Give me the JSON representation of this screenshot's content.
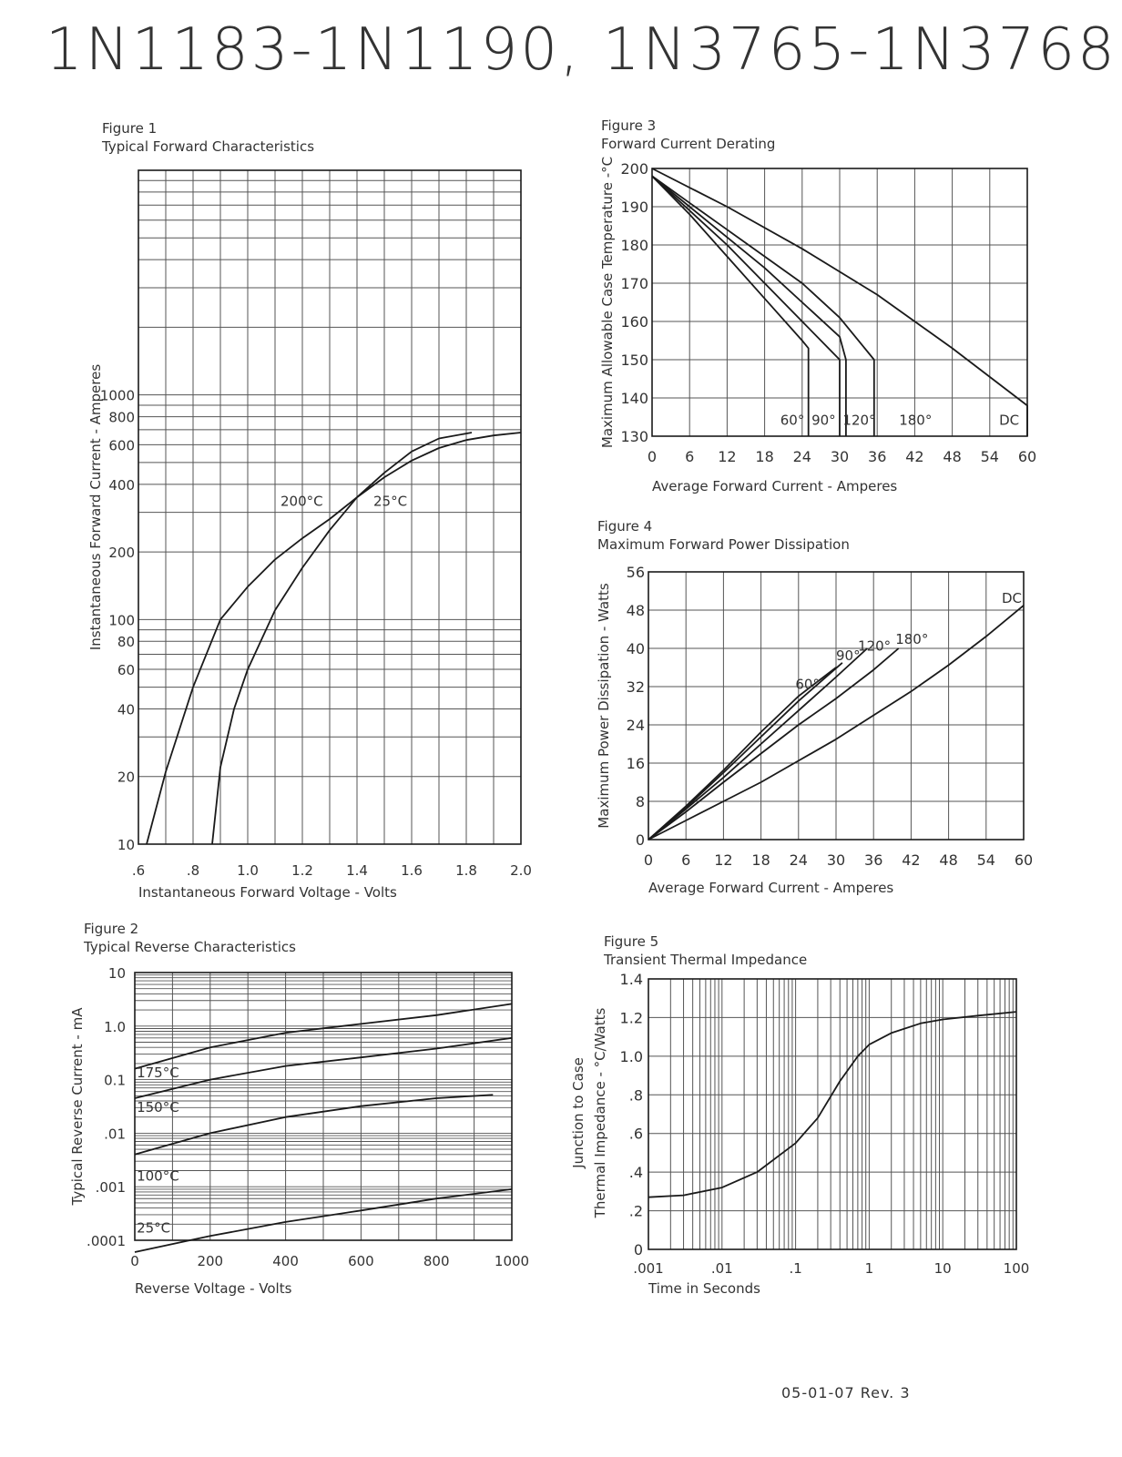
{
  "page_title": "1N1183-1N1190, 1N3765-1N3768",
  "footer": "05-01-07 Rev. 3",
  "colors": {
    "grid": "#555555",
    "curve": "#1a1a1a",
    "text": "#333333"
  },
  "chart_data": [
    {
      "id": "fig1",
      "figure": "Figure 1",
      "title": "Typical Forward Characteristics",
      "type": "line",
      "xlabel": "Instantaneous Forward Voltage - Volts",
      "ylabel": "Instantaneous Forward Current - Amperes",
      "xlim": [
        0.6,
        2.0
      ],
      "ylim": [
        10,
        10000
      ],
      "yscale": "log",
      "grid": true,
      "x_ticks": [
        ".6",
        ".8",
        "1.0",
        "1.2",
        "1.4",
        "1.6",
        "1.8",
        "2.0"
      ],
      "y_ticks": [
        {
          "label": "10",
          "value": 10
        },
        {
          "label": "20",
          "value": 20
        },
        {
          "label": "40",
          "value": 40
        },
        {
          "label": "60",
          "value": 60
        },
        {
          "label": "80",
          "value": 80
        },
        {
          "label": "100",
          "value": 100
        },
        {
          "label": "200",
          "value": 200
        },
        {
          "label": "400",
          "value": 400
        },
        {
          "label": "600",
          "value": 600
        },
        {
          "label": "800",
          "value": 800
        },
        {
          "label": "1000",
          "value": 1000
        }
      ],
      "series": [
        {
          "label": "200°C",
          "x": [
            0.63,
            0.7,
            0.8,
            0.9,
            1.0,
            1.1,
            1.2,
            1.3,
            1.4,
            1.5,
            1.6,
            1.7,
            1.82
          ],
          "y": [
            10,
            21,
            50,
            100,
            140,
            185,
            230,
            280,
            350,
            450,
            560,
            640,
            680
          ]
        },
        {
          "label": "25°C",
          "x": [
            0.87,
            0.9,
            0.95,
            1.0,
            1.1,
            1.2,
            1.3,
            1.4,
            1.5,
            1.6,
            1.7,
            1.8,
            1.9,
            2.0
          ],
          "y": [
            10,
            22,
            40,
            60,
            110,
            170,
            250,
            350,
            430,
            510,
            580,
            630,
            660,
            680
          ]
        }
      ],
      "annotations": [
        {
          "text": "200°C",
          "x": 1.12,
          "y": 320
        },
        {
          "text": "25°C",
          "x": 1.46,
          "y": 320
        }
      ]
    },
    {
      "id": "fig2",
      "figure": "Figure 2",
      "title": "Typical Reverse Characteristics",
      "type": "line",
      "xlabel": "Reverse Voltage - Volts",
      "ylabel": "Typical Reverse Current - mA",
      "xlim": [
        0,
        1000
      ],
      "ylim": [
        0.0001,
        10
      ],
      "yscale": "log",
      "grid": true,
      "x_ticks": [
        "0",
        "200",
        "400",
        "600",
        "800",
        "1000"
      ],
      "y_ticks": [
        {
          "label": "10",
          "value": 10
        },
        {
          "label": "1.0",
          "value": 1
        },
        {
          "label": "0.1",
          "value": 0.1
        },
        {
          "label": ".01",
          "value": 0.01
        },
        {
          "label": ".001",
          "value": 0.001
        },
        {
          "label": ".0001",
          "value": 0.0001
        }
      ],
      "series": [
        {
          "label": "175°C",
          "x": [
            0,
            200,
            400,
            600,
            800,
            1000
          ],
          "y": [
            0.16,
            0.4,
            0.75,
            1.1,
            1.6,
            2.6
          ]
        },
        {
          "label": "150°C",
          "x": [
            0,
            200,
            400,
            600,
            800,
            1000
          ],
          "y": [
            0.045,
            0.1,
            0.18,
            0.26,
            0.38,
            0.6
          ]
        },
        {
          "label": "100°C",
          "x": [
            0,
            200,
            400,
            600,
            800,
            950
          ],
          "y": [
            0.004,
            0.01,
            0.02,
            0.032,
            0.045,
            0.052
          ]
        },
        {
          "label": "25°C",
          "x": [
            0,
            200,
            400,
            600,
            800,
            1000
          ],
          "y": [
            6e-05,
            0.00012,
            0.00022,
            0.00036,
            0.0006,
            0.0009
          ]
        }
      ],
      "annotations": [
        {
          "text": "175°C",
          "x": 5,
          "y": 0.11
        },
        {
          "text": "150°C",
          "x": 5,
          "y": 0.025
        },
        {
          "text": "100°C",
          "x": 5,
          "y": 0.0013
        },
        {
          "text": "25°C",
          "x": 5,
          "y": 0.00014
        }
      ]
    },
    {
      "id": "fig3",
      "figure": "Figure 3",
      "title": "Forward Current Derating",
      "type": "line",
      "xlabel": "Average Forward Current - Amperes",
      "ylabel": "Maximum Allowable Case Temperature -°C",
      "xlim": [
        0,
        60
      ],
      "ylim": [
        130,
        200
      ],
      "grid": true,
      "x_ticks": [
        "0",
        "6",
        "12",
        "18",
        "24",
        "30",
        "36",
        "42",
        "48",
        "54",
        "60"
      ],
      "y_ticks": [
        "130",
        "140",
        "150",
        "160",
        "170",
        "180",
        "190",
        "200"
      ],
      "series": [
        {
          "label": "60°",
          "x": [
            0,
            6,
            12,
            18,
            24,
            25,
            25
          ],
          "y": [
            198,
            188,
            177,
            166,
            155,
            153,
            130
          ]
        },
        {
          "label": "90°",
          "x": [
            0,
            6,
            12,
            18,
            24,
            30,
            30
          ],
          "y": [
            198,
            189,
            180,
            170,
            160,
            150,
            130
          ]
        },
        {
          "label": "120°",
          "x": [
            0,
            6,
            12,
            18,
            24,
            30,
            31,
            31
          ],
          "y": [
            198,
            190,
            182,
            174,
            165,
            156,
            150,
            130
          ]
        },
        {
          "label": "180°",
          "x": [
            0,
            6,
            12,
            18,
            24,
            30,
            35.5,
            35.5
          ],
          "y": [
            198,
            191,
            184,
            177,
            170,
            161,
            150,
            130
          ]
        },
        {
          "label": "DC",
          "x": [
            0,
            12,
            24,
            36,
            48,
            60,
            60
          ],
          "y": [
            200,
            190,
            179,
            167,
            153,
            138,
            130
          ]
        }
      ],
      "annotations": [
        {
          "text": "60°",
          "x": 20.5,
          "y": 133
        },
        {
          "text": "90°",
          "x": 25.5,
          "y": 133
        },
        {
          "text": "120°",
          "x": 30.5,
          "y": 133
        },
        {
          "text": "180°",
          "x": 39.5,
          "y": 133
        },
        {
          "text": "DC",
          "x": 55.5,
          "y": 133
        }
      ]
    },
    {
      "id": "fig4",
      "figure": "Figure 4",
      "title": "Maximum Forward Power Dissipation",
      "type": "line",
      "xlabel": "Average Forward Current - Amperes",
      "ylabel": "Maximum Power Dissipation - Watts",
      "xlim": [
        0,
        60
      ],
      "ylim": [
        0,
        56
      ],
      "grid": true,
      "x_ticks": [
        "0",
        "6",
        "12",
        "18",
        "24",
        "30",
        "36",
        "42",
        "48",
        "54",
        "60"
      ],
      "y_ticks": [
        "0",
        "8",
        "16",
        "24",
        "32",
        "40",
        "48",
        "56"
      ],
      "series": [
        {
          "label": "60°",
          "x": [
            0,
            6,
            12,
            18,
            24,
            30
          ],
          "y": [
            0,
            7,
            14.5,
            22.5,
            30,
            36
          ]
        },
        {
          "label": "90°",
          "x": [
            0,
            6,
            12,
            18,
            24,
            31
          ],
          "y": [
            0,
            6.7,
            14,
            21.5,
            29,
            37
          ]
        },
        {
          "label": "120°",
          "x": [
            0,
            6,
            12,
            18,
            24,
            30,
            35
          ],
          "y": [
            0,
            6.4,
            13,
            20,
            27,
            34,
            40
          ]
        },
        {
          "label": "180°",
          "x": [
            0,
            6,
            12,
            18,
            24,
            30,
            36,
            40
          ],
          "y": [
            0,
            5.8,
            12,
            18,
            24,
            29.5,
            35.5,
            40
          ]
        },
        {
          "label": "DC",
          "x": [
            0,
            6,
            12,
            18,
            24,
            30,
            36,
            42,
            48,
            54,
            60
          ],
          "y": [
            0,
            4,
            8,
            12,
            16.5,
            21,
            26,
            31,
            36.5,
            42.5,
            49
          ]
        }
      ],
      "annotations": [
        {
          "text": "60°",
          "x": 23.5,
          "y": 31.5
        },
        {
          "text": "90°",
          "x": 30,
          "y": 37.5
        },
        {
          "text": "120°",
          "x": 33.5,
          "y": 39.5
        },
        {
          "text": "180°",
          "x": 39.5,
          "y": 41
        },
        {
          "text": "DC",
          "x": 56.5,
          "y": 49.5
        }
      ]
    },
    {
      "id": "fig5",
      "figure": "Figure 5",
      "title": "Transient Thermal Impedance",
      "type": "line",
      "xlabel": "Time in Seconds",
      "ylabel": "Junction to Case Thermal Impedance - °C/Watts",
      "xlim": [
        0.001,
        100
      ],
      "ylim": [
        0,
        1.4
      ],
      "xscale": "log",
      "grid": true,
      "x_ticks": [
        {
          "label": ".001",
          "value": 0.001
        },
        {
          "label": ".01",
          "value": 0.01
        },
        {
          "label": ".1",
          "value": 0.1
        },
        {
          "label": "1",
          "value": 1
        },
        {
          "label": "10",
          "value": 10
        },
        {
          "label": "100",
          "value": 100
        }
      ],
      "y_ticks": [
        "0",
        ".2",
        ".4",
        ".6",
        ".8",
        "1.0",
        "1.2",
        "1.4"
      ],
      "series": [
        {
          "label": "",
          "x": [
            0.001,
            0.003,
            0.01,
            0.03,
            0.1,
            0.2,
            0.4,
            0.7,
            1,
            2,
            5,
            10,
            30,
            100
          ],
          "y": [
            0.27,
            0.28,
            0.32,
            0.4,
            0.55,
            0.68,
            0.87,
            1.0,
            1.06,
            1.12,
            1.17,
            1.19,
            1.21,
            1.23
          ]
        }
      ]
    }
  ]
}
